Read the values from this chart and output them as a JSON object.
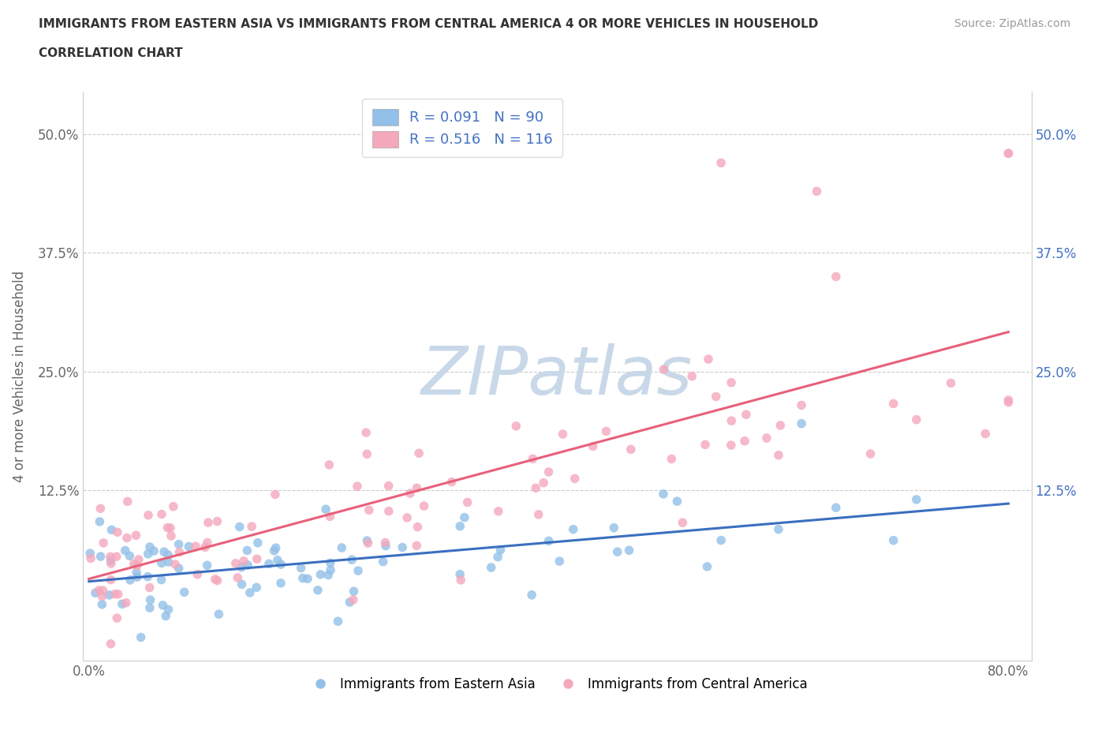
{
  "title_line1": "IMMIGRANTS FROM EASTERN ASIA VS IMMIGRANTS FROM CENTRAL AMERICA 4 OR MORE VEHICLES IN HOUSEHOLD",
  "title_line2": "CORRELATION CHART",
  "source_text": "Source: ZipAtlas.com",
  "ylabel": "4 or more Vehicles in Household",
  "legend_label_blue": "Immigrants from Eastern Asia",
  "legend_label_pink": "Immigrants from Central America",
  "R_blue": 0.091,
  "N_blue": 90,
  "R_pink": 0.516,
  "N_pink": 116,
  "xlim": [
    -0.005,
    0.82
  ],
  "ylim": [
    -0.055,
    0.545
  ],
  "color_blue": "#92C0E8",
  "color_pink": "#F4A8BC",
  "line_color_blue": "#3B6FBF",
  "line_color_pink": "#E8607A",
  "right_tick_color": "#4472C4",
  "watermark_color": "#C8D8E8",
  "blue_line_intercept": 0.03,
  "blue_line_slope": 0.09,
  "pink_line_intercept": 0.05,
  "pink_line_slope": 0.245
}
